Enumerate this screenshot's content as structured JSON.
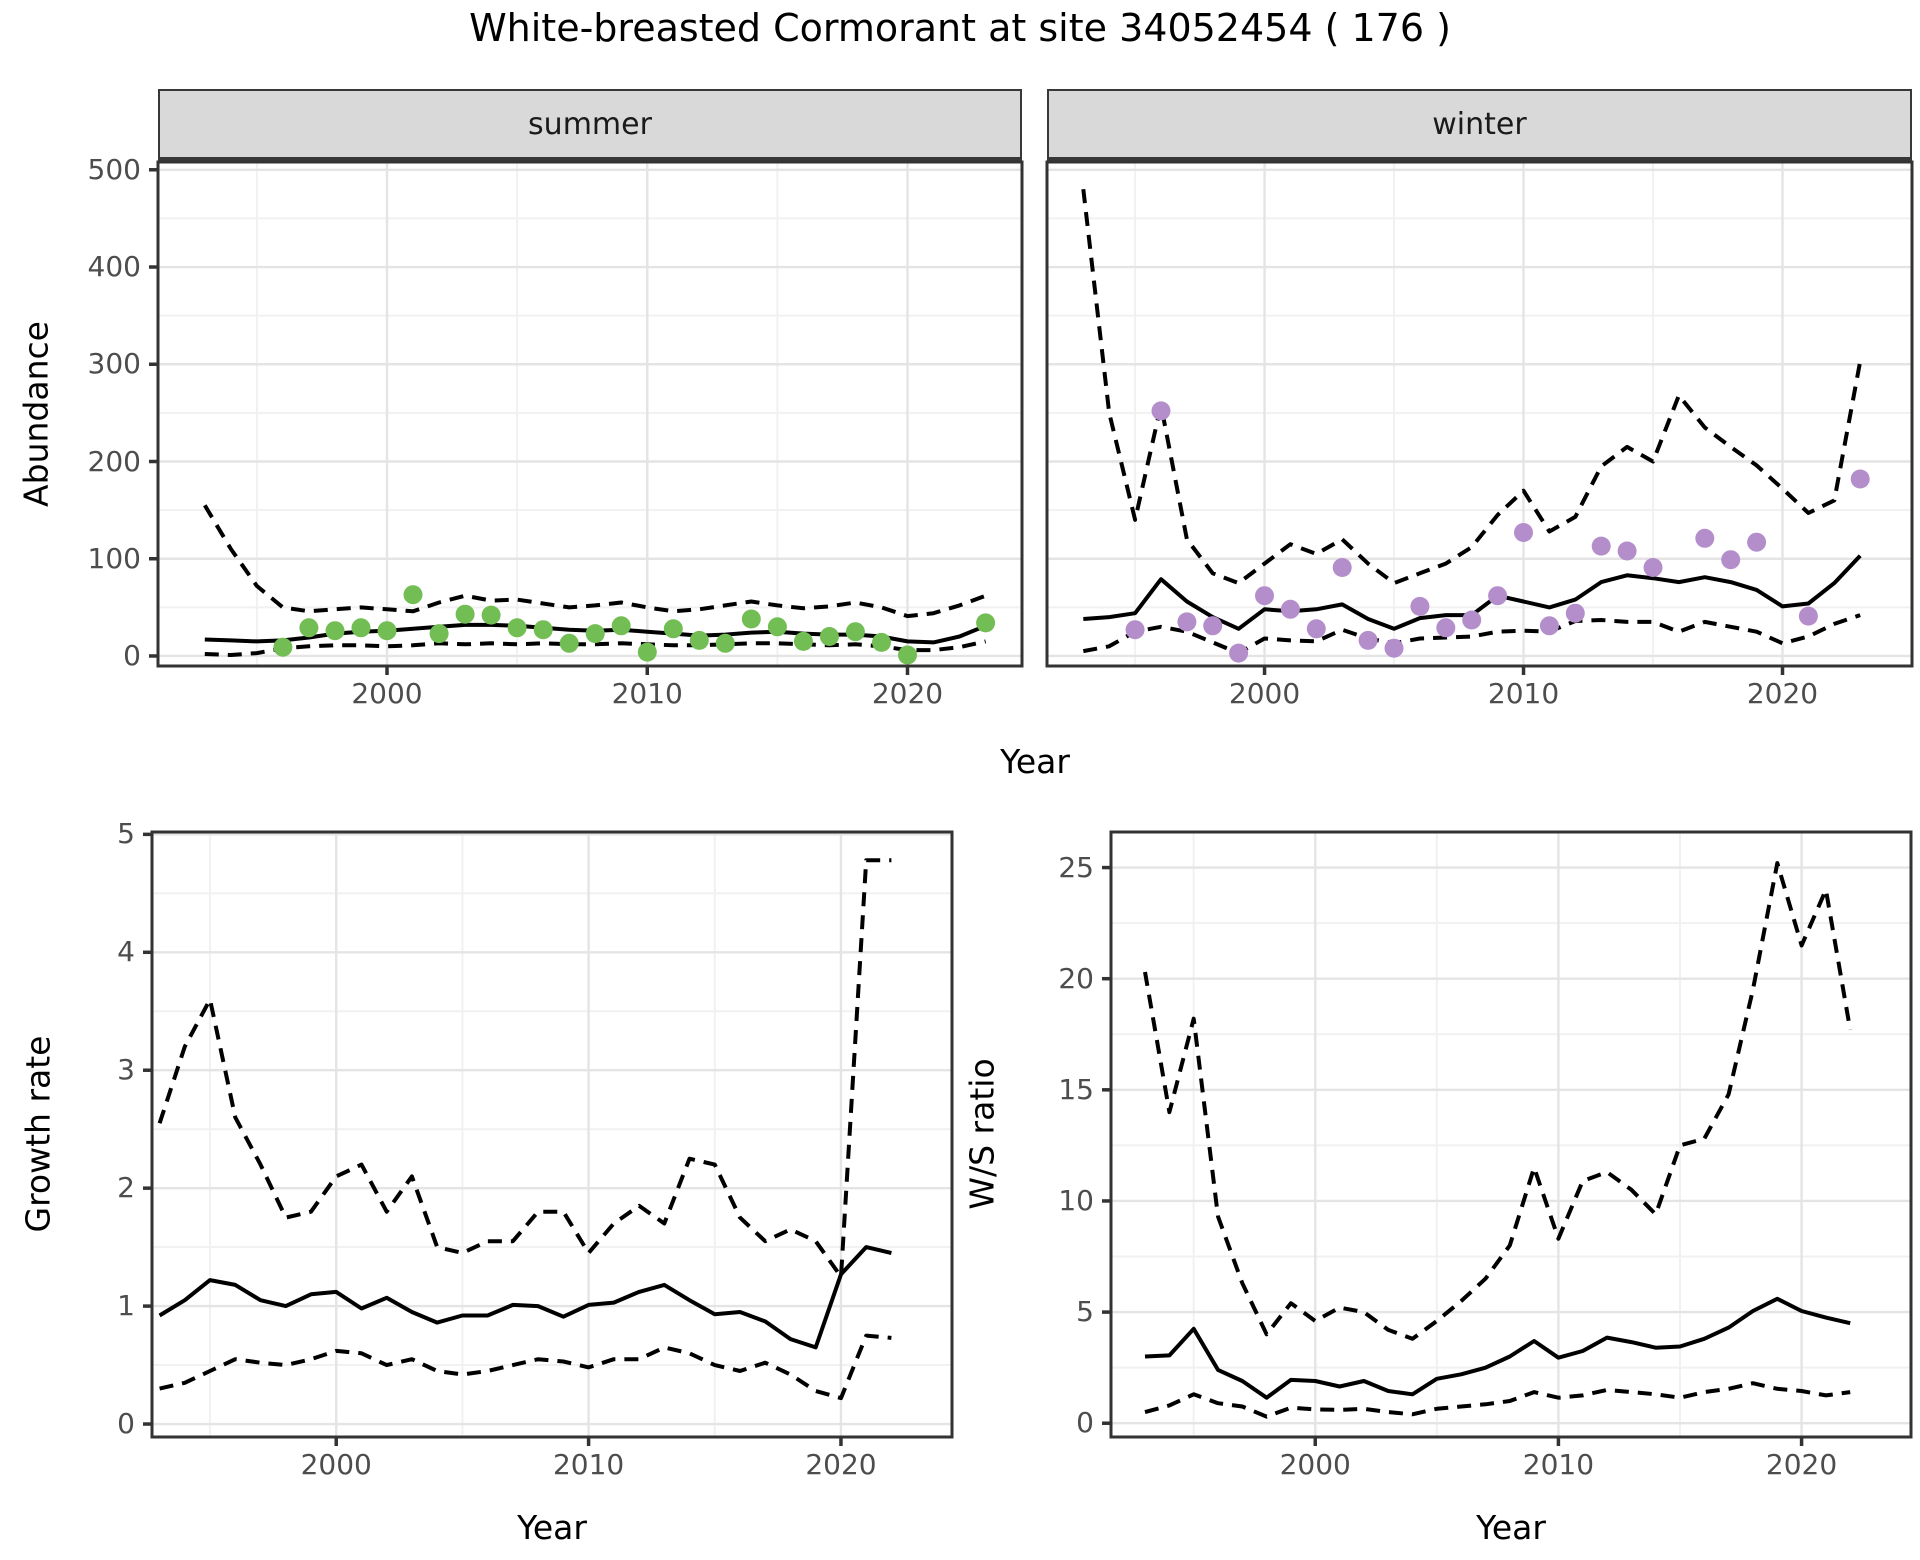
{
  "title": "White-breasted Cormorant at site 34052454 ( 176 )",
  "colors": {
    "summer_points": "#72bd54",
    "winter_points": "#b48ecb",
    "line": "#000000",
    "strip_bg": "#d9d9d9",
    "panel_border": "#333333",
    "tick_label": "#4d4d4d"
  },
  "chart_data": {
    "type": "line+scatter",
    "title": "White-breasted Cormorant at site 34052454 ( 176 )",
    "xlabel": "Year",
    "facets": [
      "summer",
      "winter"
    ],
    "legend_position": "none",
    "grid": "on",
    "panels": [
      {
        "id": "abundance-summer",
        "facet": "summer",
        "ylabel": "Abundance",
        "xlabel": "Year",
        "xlim": [
          1991.2,
          2024.4
        ],
        "ylim": [
          -10.3,
          508
        ],
        "xticks": [
          2000,
          2010,
          2020
        ],
        "xminor": [
          1995,
          2005,
          2015
        ],
        "yticks": [
          0,
          100,
          200,
          300,
          400,
          500
        ],
        "yminor": [
          50,
          150,
          250,
          350,
          450
        ],
        "show_ylabels": true,
        "years": [
          1993,
          1994,
          1995,
          1996,
          1997,
          1998,
          1999,
          2000,
          2001,
          2002,
          2003,
          2004,
          2005,
          2006,
          2007,
          2008,
          2009,
          2010,
          2011,
          2012,
          2013,
          2014,
          2015,
          2016,
          2017,
          2018,
          2019,
          2020,
          2021,
          2022,
          2023
        ],
        "series": [
          {
            "name": "median-fit",
            "style": "solid",
            "y": [
              17,
              16,
              15,
              16,
              19,
              23,
              25,
              26,
              28,
              30,
              32,
              32,
              31,
              29,
              27,
              26,
              27,
              25,
              23,
              21,
              22,
              24,
              25,
              23,
              22,
              22,
              20,
              15,
              14,
              20,
              31
            ]
          },
          {
            "name": "upper-ci",
            "style": "dashed",
            "y": [
              155,
              110,
              72,
              50,
              46,
              48,
              50,
              48,
              46,
              55,
              62,
              57,
              58,
              54,
              50,
              52,
              55,
              50,
              46,
              48,
              52,
              56,
              52,
              49,
              51,
              55,
              50,
              41,
              44,
              52,
              62
            ]
          },
          {
            "name": "lower-ci",
            "style": "dashed",
            "y": [
              2,
              1,
              3,
              8,
              10,
              11,
              11,
              10,
              11,
              13,
              12,
              13,
              12,
              13,
              12,
              12,
              13,
              12,
              11,
              11,
              12,
              13,
              13,
              12,
              11,
              12,
              10,
              6,
              6,
              9,
              15
            ]
          }
        ],
        "points": {
          "label": "observed-count",
          "color": "#72bd54",
          "x": [
            1996,
            1997,
            1998,
            1999,
            2000,
            2001,
            2002,
            2003,
            2004,
            2005,
            2006,
            2007,
            2008,
            2009,
            2010,
            2011,
            2012,
            2013,
            2014,
            2015,
            2016,
            2017,
            2018,
            2019,
            2020,
            2023
          ],
          "y": [
            9,
            29,
            26,
            29,
            26,
            63,
            23,
            43,
            42,
            29,
            27,
            13,
            23,
            31,
            4,
            28,
            16,
            13,
            38,
            30,
            15,
            20,
            25,
            14,
            1,
            34
          ]
        }
      },
      {
        "id": "abundance-winter",
        "facet": "winter",
        "ylabel": "Abundance",
        "xlabel": "Year",
        "xlim": [
          1991.6,
          2025.0
        ],
        "ylim": [
          -10.3,
          508
        ],
        "xticks": [
          2000,
          2010,
          2020
        ],
        "xminor": [
          1995,
          2005,
          2015
        ],
        "yticks": [
          0,
          100,
          200,
          300,
          400,
          500
        ],
        "yminor": [
          50,
          150,
          250,
          350,
          450
        ],
        "show_ylabels": false,
        "years": [
          1993,
          1994,
          1995,
          1996,
          1997,
          1998,
          1999,
          2000,
          2001,
          2002,
          2003,
          2004,
          2005,
          2006,
          2007,
          2008,
          2009,
          2010,
          2011,
          2012,
          2013,
          2014,
          2015,
          2016,
          2017,
          2018,
          2019,
          2020,
          2021,
          2022,
          2023
        ],
        "series": [
          {
            "name": "median-fit",
            "style": "solid",
            "y": [
              38,
              40,
              44,
              79,
              56,
              40,
              28,
              48,
              46,
              48,
              53,
              38,
              28,
              39,
              42,
              42,
              62,
              56,
              50,
              58,
              76,
              83,
              80,
              76,
              81,
              76,
              68,
              51,
              54,
              75,
              103
            ]
          },
          {
            "name": "upper-ci",
            "style": "dashed",
            "y": [
              480,
              250,
              140,
              258,
              120,
              85,
              75,
              95,
              115,
              105,
              120,
              95,
              75,
              85,
              95,
              112,
              145,
              170,
              128,
              143,
              195,
              215,
              200,
              268,
              235,
              215,
              196,
              172,
              147,
              160,
              303
            ]
          },
          {
            "name": "lower-ci",
            "style": "dashed",
            "y": [
              5,
              10,
              25,
              30,
              25,
              14,
              3,
              18,
              16,
              15,
              27,
              18,
              13,
              18,
              19,
              20,
              25,
              26,
              25,
              36,
              37,
              35,
              35,
              25,
              35,
              30,
              25,
              13,
              20,
              33,
              42
            ]
          }
        ],
        "points": {
          "label": "observed-count",
          "color": "#b48ecb",
          "x": [
            1995,
            1996,
            1997,
            1998,
            1999,
            2000,
            2001,
            2002,
            2003,
            2004,
            2005,
            2006,
            2007,
            2008,
            2009,
            2010,
            2011,
            2012,
            2013,
            2014,
            2015,
            2017,
            2018,
            2019,
            2021,
            2023
          ],
          "y": [
            27,
            252,
            35,
            31,
            3,
            62,
            48,
            28,
            91,
            16,
            8,
            51,
            29,
            37,
            62,
            127,
            31,
            44,
            113,
            108,
            91,
            121,
            99,
            117,
            41,
            182
          ]
        }
      },
      {
        "id": "growth-rate",
        "ylabel": "Growth rate",
        "xlabel": "Year",
        "xlim": [
          1992.7,
          2024.4
        ],
        "ylim": [
          -0.11,
          5.02
        ],
        "xticks": [
          2000,
          2010,
          2020
        ],
        "xminor": [
          1995,
          2005,
          2015
        ],
        "yticks": [
          0,
          1,
          2,
          3,
          4,
          5
        ],
        "yminor": [
          0.5,
          1.5,
          2.5,
          3.5,
          4.5
        ],
        "show_ylabels": true,
        "years": [
          1993,
          1994,
          1995,
          1996,
          1997,
          1998,
          1999,
          2000,
          2001,
          2002,
          2003,
          2004,
          2005,
          2006,
          2007,
          2008,
          2009,
          2010,
          2011,
          2012,
          2013,
          2014,
          2015,
          2016,
          2017,
          2018,
          2019,
          2020,
          2021,
          2022
        ],
        "series": [
          {
            "name": "median-fit",
            "style": "solid",
            "y": [
              0.92,
              1.05,
              1.22,
              1.18,
              1.05,
              1.0,
              1.1,
              1.12,
              0.98,
              1.07,
              0.95,
              0.86,
              0.92,
              0.92,
              1.01,
              1.0,
              0.91,
              1.01,
              1.03,
              1.12,
              1.18,
              1.05,
              0.93,
              0.95,
              0.87,
              0.72,
              0.65,
              1.27,
              1.5,
              1.45
            ]
          },
          {
            "name": "upper-ci",
            "style": "dashed",
            "y": [
              2.55,
              3.2,
              3.6,
              2.6,
              2.2,
              1.75,
              1.8,
              2.1,
              2.2,
              1.8,
              2.1,
              1.5,
              1.45,
              1.55,
              1.55,
              1.8,
              1.8,
              1.45,
              1.7,
              1.85,
              1.7,
              2.25,
              2.2,
              1.75,
              1.55,
              1.65,
              1.55,
              1.25,
              4.78,
              4.78
            ]
          },
          {
            "name": "lower-ci",
            "style": "dashed",
            "y": [
              0.3,
              0.35,
              0.45,
              0.55,
              0.52,
              0.5,
              0.55,
              0.62,
              0.6,
              0.5,
              0.55,
              0.45,
              0.42,
              0.45,
              0.5,
              0.55,
              0.53,
              0.48,
              0.55,
              0.55,
              0.65,
              0.6,
              0.5,
              0.45,
              0.52,
              0.42,
              0.28,
              0.22,
              0.75,
              0.73
            ]
          }
        ]
      },
      {
        "id": "ws-ratio",
        "ylabel": "W/S ratio",
        "xlabel": "Year",
        "xlim": [
          1991.6,
          2024.5
        ],
        "ylim": [
          -0.62,
          26.6
        ],
        "xticks": [
          2000,
          2010,
          2020
        ],
        "xminor": [
          1995,
          2005,
          2015
        ],
        "yticks": [
          0,
          5,
          10,
          15,
          20,
          25
        ],
        "yminor": [
          2.5,
          7.5,
          12.5,
          17.5,
          22.5
        ],
        "show_ylabels": true,
        "years": [
          1993,
          1994,
          1995,
          1996,
          1997,
          1998,
          1999,
          2000,
          2001,
          2002,
          2003,
          2004,
          2005,
          2006,
          2007,
          2008,
          2009,
          2010,
          2011,
          2012,
          2013,
          2014,
          2015,
          2016,
          2017,
          2018,
          2019,
          2020,
          2021,
          2022
        ],
        "series": [
          {
            "name": "median-fit",
            "style": "solid",
            "y": [
              3.0,
              3.05,
              4.25,
              2.4,
              1.9,
              1.15,
              1.95,
              1.9,
              1.65,
              1.9,
              1.45,
              1.3,
              2.0,
              2.2,
              2.5,
              3.0,
              3.7,
              2.95,
              3.25,
              3.85,
              3.65,
              3.4,
              3.45,
              3.8,
              4.3,
              5.05,
              5.6,
              5.05,
              4.75,
              4.5
            ]
          },
          {
            "name": "upper-ci",
            "style": "dashed",
            "y": [
              20.3,
              14.0,
              18.2,
              9.3,
              6.3,
              4.0,
              5.4,
              4.6,
              5.2,
              5.0,
              4.2,
              3.8,
              4.6,
              5.5,
              6.5,
              8.0,
              11.5,
              8.3,
              10.9,
              11.3,
              10.5,
              9.4,
              12.5,
              12.8,
              14.8,
              19.5,
              25.2,
              21.5,
              24.0,
              17.7
            ]
          },
          {
            "name": "lower-ci",
            "style": "dashed",
            "y": [
              0.5,
              0.8,
              1.3,
              0.9,
              0.75,
              0.3,
              0.7,
              0.62,
              0.6,
              0.65,
              0.5,
              0.4,
              0.65,
              0.75,
              0.85,
              1.0,
              1.4,
              1.15,
              1.25,
              1.5,
              1.4,
              1.3,
              1.15,
              1.4,
              1.55,
              1.8,
              1.55,
              1.45,
              1.25,
              1.4
            ]
          }
        ]
      }
    ]
  }
}
